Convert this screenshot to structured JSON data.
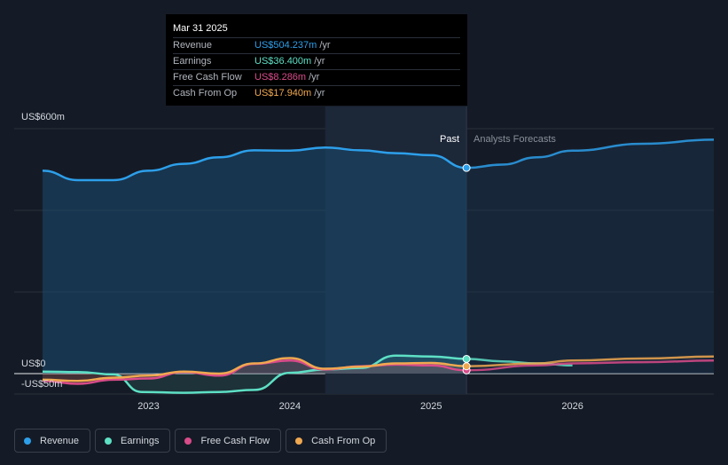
{
  "tooltip": {
    "date": "Mar 31 2025",
    "rows": [
      {
        "label": "Revenue",
        "value": "US$504.237m",
        "unit": "/yr",
        "color": "#2d9fea"
      },
      {
        "label": "Earnings",
        "value": "US$36.400m",
        "unit": "/yr",
        "color": "#5ee0c5"
      },
      {
        "label": "Free Cash Flow",
        "value": "US$8.286m",
        "unit": "/yr",
        "color": "#d94b8a"
      },
      {
        "label": "Cash From Op",
        "value": "US$17.940m",
        "unit": "/yr",
        "color": "#f0a850"
      }
    ]
  },
  "labels": {
    "past": "Past",
    "forecast": "Analysts Forecasts"
  },
  "legend": [
    {
      "label": "Revenue",
      "color": "#2d9fea"
    },
    {
      "label": "Earnings",
      "color": "#5ee0c5"
    },
    {
      "label": "Free Cash Flow",
      "color": "#d94b8a"
    },
    {
      "label": "Cash From Op",
      "color": "#f0a850"
    }
  ],
  "chart_data": {
    "type": "line",
    "ylim": [
      -50,
      600
    ],
    "xlim": [
      2022.25,
      2027.0
    ],
    "ytick_labels": [
      {
        "value": 600,
        "label": "US$600m"
      },
      {
        "value": 0,
        "label": "US$0"
      },
      {
        "value": -50,
        "label": "-US$50m"
      }
    ],
    "xticks": [
      {
        "value": 2023,
        "label": "2023"
      },
      {
        "value": 2024,
        "label": "2024"
      },
      {
        "value": 2025,
        "label": "2025"
      },
      {
        "value": 2026,
        "label": "2026"
      }
    ],
    "past_forecast_split": 2025.25,
    "highlight_start": 2024.25,
    "series": [
      {
        "name": "Revenue",
        "color": "#2d9fea",
        "past": [
          [
            2022.25,
            497
          ],
          [
            2022.5,
            474
          ],
          [
            2022.75,
            474
          ],
          [
            2023.0,
            497
          ],
          [
            2023.25,
            514
          ],
          [
            2023.5,
            530
          ],
          [
            2023.75,
            547
          ],
          [
            2024.0,
            546
          ],
          [
            2024.25,
            554
          ],
          [
            2024.5,
            547
          ],
          [
            2024.75,
            540
          ],
          [
            2025.0,
            535
          ],
          [
            2025.25,
            504
          ]
        ],
        "forecast": [
          [
            2025.25,
            504
          ],
          [
            2025.5,
            512
          ],
          [
            2025.75,
            530
          ],
          [
            2026.0,
            546
          ],
          [
            2026.5,
            563
          ],
          [
            2027.0,
            573
          ]
        ]
      },
      {
        "name": "Earnings",
        "color": "#5ee0c5",
        "past": [
          [
            2022.25,
            5
          ],
          [
            2022.5,
            4
          ],
          [
            2022.75,
            -2
          ],
          [
            2022.95,
            -45
          ],
          [
            2023.25,
            -47
          ],
          [
            2023.5,
            -45
          ],
          [
            2023.75,
            -40
          ],
          [
            2024.0,
            2
          ],
          [
            2024.25,
            10
          ],
          [
            2024.5,
            14
          ],
          [
            2024.75,
            44
          ],
          [
            2025.0,
            42
          ],
          [
            2025.25,
            36
          ]
        ],
        "forecast": [
          [
            2025.25,
            36
          ],
          [
            2025.5,
            30
          ],
          [
            2025.75,
            25
          ],
          [
            2026.0,
            20
          ]
        ]
      },
      {
        "name": "Free Cash Flow",
        "color": "#d94b8a",
        "past": [
          [
            2022.25,
            -18
          ],
          [
            2022.5,
            -25
          ],
          [
            2022.75,
            -15
          ],
          [
            2023.0,
            -12
          ],
          [
            2023.25,
            4
          ],
          [
            2023.5,
            -5
          ],
          [
            2023.75,
            24
          ],
          [
            2024.0,
            32
          ],
          [
            2024.25,
            10
          ],
          [
            2024.5,
            18
          ],
          [
            2024.75,
            22
          ],
          [
            2025.0,
            20
          ],
          [
            2025.25,
            8
          ]
        ],
        "forecast": [
          [
            2025.25,
            8
          ],
          [
            2025.75,
            20
          ],
          [
            2026.0,
            25
          ],
          [
            2026.5,
            28
          ],
          [
            2027.0,
            32
          ]
        ]
      },
      {
        "name": "Cash From Op",
        "color": "#f0a850",
        "past": [
          [
            2022.25,
            -15
          ],
          [
            2022.5,
            -18
          ],
          [
            2022.75,
            -10
          ],
          [
            2023.0,
            -5
          ],
          [
            2023.25,
            5
          ],
          [
            2023.5,
            0
          ],
          [
            2023.75,
            25
          ],
          [
            2024.0,
            38
          ],
          [
            2024.25,
            12
          ],
          [
            2024.5,
            17
          ],
          [
            2024.75,
            25
          ],
          [
            2025.0,
            26
          ],
          [
            2025.25,
            18
          ]
        ],
        "forecast": [
          [
            2025.25,
            18
          ],
          [
            2025.75,
            25
          ],
          [
            2026.0,
            32
          ],
          [
            2026.5,
            37
          ],
          [
            2027.0,
            42
          ]
        ]
      }
    ]
  }
}
